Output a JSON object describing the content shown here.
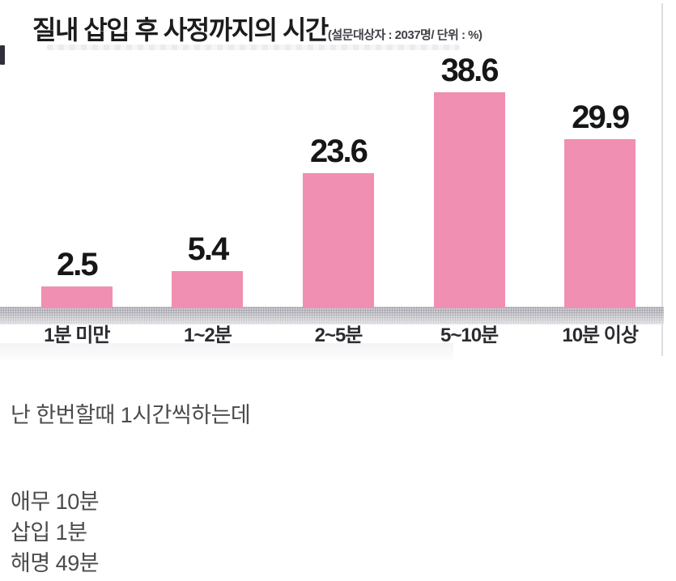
{
  "chart_data": {
    "type": "bar",
    "title": "질내 삽입 후 사정까지의 시간",
    "subtitle": "(설문대상자 : 2037명/ 단위 : %)",
    "survey_respondents": "2037명",
    "unit": "%",
    "categories": [
      "1분 미만",
      "1~2분",
      "2~5분",
      "5~10분",
      "10분 이상"
    ],
    "values": [
      2.5,
      5.4,
      23.6,
      38.6,
      29.9
    ],
    "ylim": [
      0,
      40
    ],
    "grid": "off",
    "legend": "none",
    "bar_color": "#f08fb2",
    "value_label_color": "#161616",
    "baseline_band_color": "#d6d6dc"
  },
  "post": {
    "line1": "난 한번할때 1시간씩하는데",
    "lines": [
      "애무 10분",
      "삽입 1분",
      "해명 49분"
    ]
  }
}
